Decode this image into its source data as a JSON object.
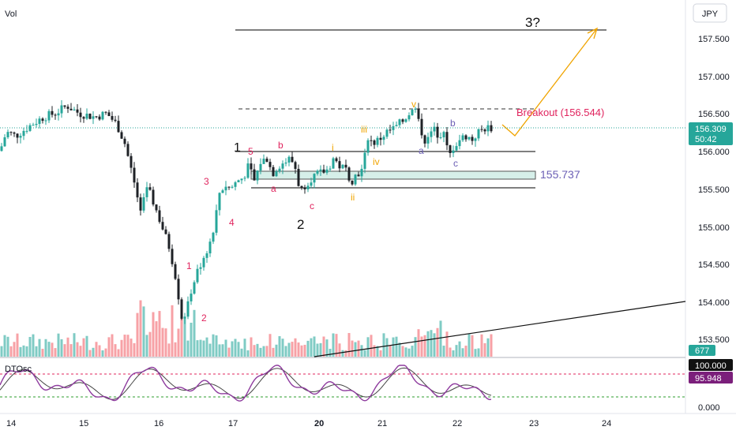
{
  "header": {
    "vol_label": "Vol",
    "currency_label": "JPY"
  },
  "price_axis": {
    "ticks": [
      "157.500",
      "157.000",
      "156.500",
      "156.000",
      "155.500",
      "155.000",
      "154.500",
      "154.000",
      "153.500"
    ],
    "current_price": "156.309",
    "countdown": "50:42",
    "volume_badge": "677"
  },
  "oscillator": {
    "label": "DTOsc",
    "ticks": [
      "0.000"
    ],
    "upper_badge": "100.000",
    "value_badge": "95.948"
  },
  "time_axis": {
    "labels": [
      "14",
      "15",
      "16",
      "17",
      "20",
      "21",
      "22",
      "23",
      "24"
    ]
  },
  "annotations": {
    "target_label": "3?",
    "breakout_label": "Breakout (156.544)",
    "support_label": "155.737",
    "wave_labels": [
      "1",
      "2",
      "3",
      "4",
      "5",
      "a",
      "b",
      "c",
      "1",
      "2",
      "i",
      "ii",
      "iii",
      "iv",
      "v",
      "a",
      "b",
      "c"
    ]
  },
  "colors": {
    "up": "#26a69a",
    "down": "#1e2126",
    "vol_up": "#7fcbc4",
    "vol_down": "#f7a1a6",
    "wave_red": "#e0245e",
    "wave_orange": "#f0a400",
    "wave_purple": "#6b5fb5",
    "osc_k": "#8e3b9e",
    "osc_d": "#444444",
    "badge_price": "#26a69a",
    "badge_osc": "#7b1f7b"
  },
  "chart_data": {
    "type": "candlestick",
    "symbol_quote": "JPY",
    "x_labels": [
      "14",
      "15",
      "16",
      "17",
      "20",
      "21",
      "22",
      "23",
      "24"
    ],
    "y_range": [
      153.2,
      157.95
    ],
    "close_path": [
      [
        0,
        156.0
      ],
      [
        8,
        156.25
      ],
      [
        20,
        156.2
      ],
      [
        40,
        156.35
      ],
      [
        55,
        156.45
      ],
      [
        70,
        156.5
      ],
      [
        85,
        156.6
      ],
      [
        100,
        156.5
      ],
      [
        120,
        156.45
      ],
      [
        135,
        156.5
      ],
      [
        148,
        156.35
      ],
      [
        158,
        156.1
      ],
      [
        165,
        155.8
      ],
      [
        172,
        155.5
      ],
      [
        178,
        155.15
      ],
      [
        185,
        155.55
      ],
      [
        195,
        155.3
      ],
      [
        205,
        155.0
      ],
      [
        215,
        154.7
      ],
      [
        222,
        154.35
      ],
      [
        230,
        153.8
      ],
      [
        236,
        153.85
      ],
      [
        242,
        154.15
      ],
      [
        250,
        154.4
      ],
      [
        258,
        154.6
      ],
      [
        265,
        154.75
      ],
      [
        272,
        155.05
      ],
      [
        278,
        155.45
      ],
      [
        285,
        155.55
      ],
      [
        292,
        155.5
      ],
      [
        300,
        155.6
      ],
      [
        308,
        155.65
      ],
      [
        315,
        155.8
      ],
      [
        322,
        155.6
      ],
      [
        330,
        155.85
      ],
      [
        338,
        155.9
      ],
      [
        345,
        155.7
      ],
      [
        352,
        155.8
      ],
      [
        360,
        155.85
      ],
      [
        368,
        155.9
      ],
      [
        375,
        155.75
      ],
      [
        380,
        155.45
      ],
      [
        386,
        155.55
      ],
      [
        395,
        155.65
      ],
      [
        405,
        155.7
      ],
      [
        415,
        155.75
      ],
      [
        422,
        155.9
      ],
      [
        430,
        155.8
      ],
      [
        438,
        155.75
      ],
      [
        445,
        155.6
      ],
      [
        452,
        155.7
      ],
      [
        460,
        155.75
      ],
      [
        465,
        156.2
      ],
      [
        472,
        156.1
      ],
      [
        480,
        156.15
      ],
      [
        490,
        156.25
      ],
      [
        500,
        156.3
      ],
      [
        510,
        156.4
      ],
      [
        518,
        156.5
      ],
      [
        526,
        156.55
      ],
      [
        532,
        156.3
      ],
      [
        540,
        156.1
      ],
      [
        548,
        156.3
      ],
      [
        556,
        156.2
      ],
      [
        562,
        156.3
      ],
      [
        568,
        155.9
      ],
      [
        574,
        156.05
      ],
      [
        582,
        156.15
      ],
      [
        590,
        156.2
      ],
      [
        598,
        156.15
      ],
      [
        606,
        156.25
      ],
      [
        614,
        156.3
      ],
      [
        622,
        156.31
      ]
    ],
    "levels": {
      "target": 157.6,
      "breakout": 156.544,
      "line_156": 156.0,
      "zone_top": 155.76,
      "zone_bottom": 155.66,
      "line_155_5": 155.5
    },
    "oscillator_range": [
      0,
      100
    ]
  }
}
